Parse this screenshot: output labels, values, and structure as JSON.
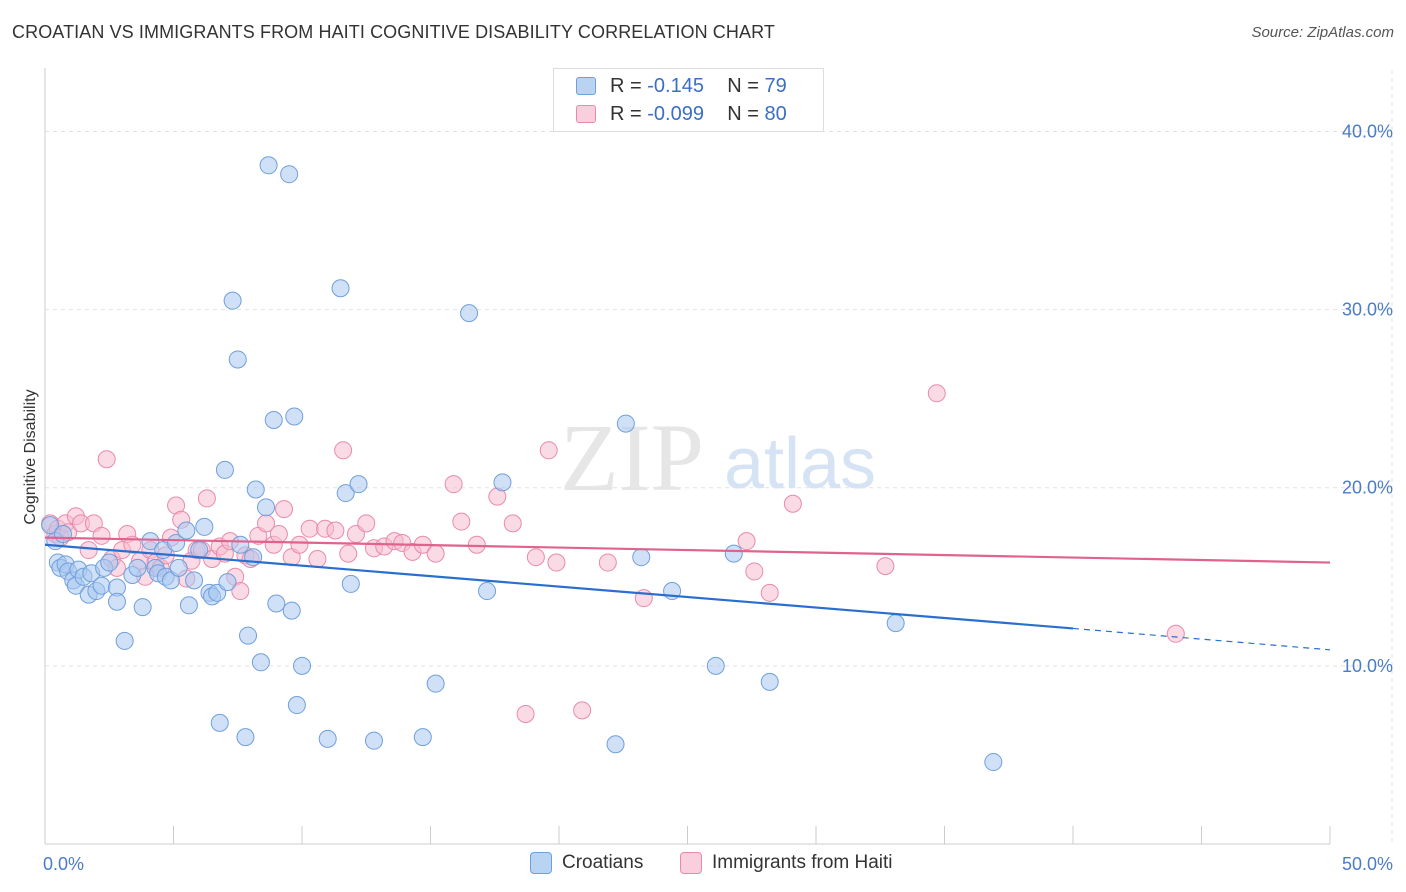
{
  "title": "CROATIAN VS IMMIGRANTS FROM HAITI COGNITIVE DISABILITY CORRELATION CHART",
  "source": "Source: ZipAtlas.com",
  "watermark": {
    "zip": "ZIP",
    "atlas": "atlas"
  },
  "legend": {
    "rows": [
      {
        "r_label": "R = ",
        "r_value": "-0.145",
        "n_label": "N = ",
        "n_value": "79"
      },
      {
        "r_label": "R = ",
        "r_value": "-0.099",
        "n_label": "N = ",
        "n_value": "80"
      }
    ]
  },
  "bottom_legend": [
    "Croatians",
    "Immigrants from Haiti"
  ],
  "colors": {
    "blue_fill": "#a9c8f0",
    "blue_stroke": "#6f9fdc",
    "blue_line": "#2a6fcf",
    "pink_fill": "#f6bcd0",
    "pink_stroke": "#e98aab",
    "pink_line": "#e0628f",
    "grid": "#e2e2e2",
    "tick_text": "#4a7cc7"
  },
  "chart_data": {
    "type": "scatter",
    "title": "CROATIAN VS IMMIGRANTS FROM HAITI COGNITIVE DISABILITY CORRELATION CHART",
    "xlabel": "",
    "ylabel": "Cognitive Disability",
    "xlim": [
      0,
      50
    ],
    "ylim": [
      0,
      43
    ],
    "x_tick_labels": [
      "0.0%",
      "50.0%"
    ],
    "y_ticks": [
      10,
      20,
      30,
      40
    ],
    "y_tick_labels": [
      "10.0%",
      "20.0%",
      "30.0%",
      "40.0%"
    ],
    "series": [
      {
        "name": "Croatians",
        "R": -0.145,
        "N": 79,
        "trend": {
          "x0": 0,
          "y0": 16.8,
          "x1": 40,
          "y1": 12.1,
          "dashed_to_x": 50,
          "dashed_to_y": 10.9
        },
        "points": [
          [
            0.2,
            17.9
          ],
          [
            0.4,
            17.0
          ],
          [
            0.5,
            15.8
          ],
          [
            0.6,
            15.5
          ],
          [
            0.7,
            17.4
          ],
          [
            0.8,
            15.7
          ],
          [
            0.9,
            15.3
          ],
          [
            1.1,
            14.8
          ],
          [
            1.2,
            14.5
          ],
          [
            1.3,
            15.4
          ],
          [
            1.5,
            15.0
          ],
          [
            1.7,
            14.0
          ],
          [
            1.8,
            15.2
          ],
          [
            2.0,
            14.2
          ],
          [
            2.2,
            14.5
          ],
          [
            2.3,
            15.5
          ],
          [
            2.5,
            15.8
          ],
          [
            2.8,
            14.4
          ],
          [
            2.8,
            13.6
          ],
          [
            3.1,
            11.4
          ],
          [
            3.4,
            15.1
          ],
          [
            3.6,
            15.5
          ],
          [
            3.8,
            13.3
          ],
          [
            4.1,
            17.0
          ],
          [
            4.3,
            15.5
          ],
          [
            4.4,
            15.2
          ],
          [
            4.6,
            16.5
          ],
          [
            4.7,
            15.0
          ],
          [
            4.9,
            14.8
          ],
          [
            5.1,
            16.9
          ],
          [
            5.2,
            15.5
          ],
          [
            5.5,
            17.6
          ],
          [
            5.6,
            13.4
          ],
          [
            5.8,
            14.8
          ],
          [
            6.0,
            16.5
          ],
          [
            6.2,
            17.8
          ],
          [
            6.4,
            14.1
          ],
          [
            6.5,
            13.9
          ],
          [
            6.7,
            14.1
          ],
          [
            6.8,
            6.8
          ],
          [
            7.0,
            21.0
          ],
          [
            7.1,
            14.7
          ],
          [
            7.3,
            30.5
          ],
          [
            7.5,
            27.2
          ],
          [
            7.6,
            16.8
          ],
          [
            7.8,
            6.0
          ],
          [
            7.9,
            11.7
          ],
          [
            8.1,
            16.1
          ],
          [
            8.2,
            19.9
          ],
          [
            8.4,
            10.2
          ],
          [
            8.6,
            18.9
          ],
          [
            8.7,
            38.1
          ],
          [
            8.9,
            23.8
          ],
          [
            9.0,
            13.5
          ],
          [
            9.5,
            37.6
          ],
          [
            9.6,
            13.1
          ],
          [
            9.7,
            24.0
          ],
          [
            9.8,
            7.8
          ],
          [
            10.0,
            10.0
          ],
          [
            11.0,
            5.9
          ],
          [
            11.5,
            31.2
          ],
          [
            11.7,
            19.7
          ],
          [
            11.9,
            14.6
          ],
          [
            12.2,
            20.2
          ],
          [
            12.8,
            5.8
          ],
          [
            14.7,
            6.0
          ],
          [
            15.2,
            9.0
          ],
          [
            16.5,
            29.8
          ],
          [
            17.2,
            14.2
          ],
          [
            17.8,
            20.3
          ],
          [
            22.2,
            5.6
          ],
          [
            22.6,
            23.6
          ],
          [
            23.2,
            16.1
          ],
          [
            24.4,
            14.2
          ],
          [
            26.1,
            10.0
          ],
          [
            26.8,
            16.3
          ],
          [
            28.2,
            9.1
          ],
          [
            33.1,
            12.4
          ],
          [
            36.9,
            4.6
          ]
        ]
      },
      {
        "name": "Immigrants from Haiti",
        "R": -0.099,
        "N": 80,
        "trend": {
          "x0": 0,
          "y0": 17.2,
          "x1": 50,
          "y1": 15.8
        },
        "points": [
          [
            0.2,
            18.0
          ],
          [
            0.4,
            17.4
          ],
          [
            0.5,
            17.7
          ],
          [
            0.6,
            17.2
          ],
          [
            0.8,
            18.0
          ],
          [
            0.9,
            17.5
          ],
          [
            1.2,
            18.4
          ],
          [
            1.4,
            18.0
          ],
          [
            1.7,
            16.5
          ],
          [
            1.9,
            18.0
          ],
          [
            2.2,
            17.3
          ],
          [
            2.4,
            21.6
          ],
          [
            2.6,
            16.0
          ],
          [
            2.8,
            15.5
          ],
          [
            3.0,
            16.5
          ],
          [
            3.2,
            17.4
          ],
          [
            3.4,
            16.8
          ],
          [
            3.7,
            15.9
          ],
          [
            3.9,
            15.0
          ],
          [
            4.1,
            16.5
          ],
          [
            4.3,
            15.8
          ],
          [
            4.5,
            15.5
          ],
          [
            4.7,
            16.2
          ],
          [
            4.9,
            17.2
          ],
          [
            5.1,
            19.0
          ],
          [
            5.3,
            18.2
          ],
          [
            5.5,
            14.9
          ],
          [
            5.7,
            15.9
          ],
          [
            5.9,
            16.5
          ],
          [
            6.1,
            16.5
          ],
          [
            6.3,
            19.4
          ],
          [
            6.5,
            16.0
          ],
          [
            6.8,
            16.7
          ],
          [
            7.0,
            16.3
          ],
          [
            7.2,
            17.0
          ],
          [
            7.4,
            15.0
          ],
          [
            7.6,
            14.2
          ],
          [
            7.8,
            16.2
          ],
          [
            8.0,
            16.0
          ],
          [
            8.3,
            17.3
          ],
          [
            8.6,
            18.0
          ],
          [
            8.9,
            16.8
          ],
          [
            9.1,
            17.4
          ],
          [
            9.3,
            18.8
          ],
          [
            9.6,
            16.1
          ],
          [
            9.9,
            16.8
          ],
          [
            10.3,
            17.7
          ],
          [
            10.6,
            16.0
          ],
          [
            10.9,
            17.7
          ],
          [
            11.3,
            17.6
          ],
          [
            11.6,
            22.1
          ],
          [
            11.8,
            16.3
          ],
          [
            12.1,
            17.4
          ],
          [
            12.5,
            18.0
          ],
          [
            12.8,
            16.6
          ],
          [
            13.2,
            16.7
          ],
          [
            13.6,
            17.0
          ],
          [
            13.9,
            16.9
          ],
          [
            14.3,
            16.4
          ],
          [
            14.7,
            16.8
          ],
          [
            15.2,
            16.3
          ],
          [
            15.9,
            20.2
          ],
          [
            16.2,
            18.1
          ],
          [
            16.8,
            16.8
          ],
          [
            17.6,
            19.5
          ],
          [
            18.2,
            18.0
          ],
          [
            18.7,
            7.3
          ],
          [
            19.1,
            16.1
          ],
          [
            19.6,
            22.1
          ],
          [
            19.9,
            15.8
          ],
          [
            20.9,
            7.5
          ],
          [
            21.9,
            15.8
          ],
          [
            23.3,
            13.8
          ],
          [
            27.3,
            17.0
          ],
          [
            27.6,
            15.3
          ],
          [
            28.2,
            14.1
          ],
          [
            29.1,
            19.1
          ],
          [
            32.7,
            15.6
          ],
          [
            34.7,
            25.3
          ],
          [
            44.0,
            11.8
          ]
        ]
      }
    ]
  }
}
